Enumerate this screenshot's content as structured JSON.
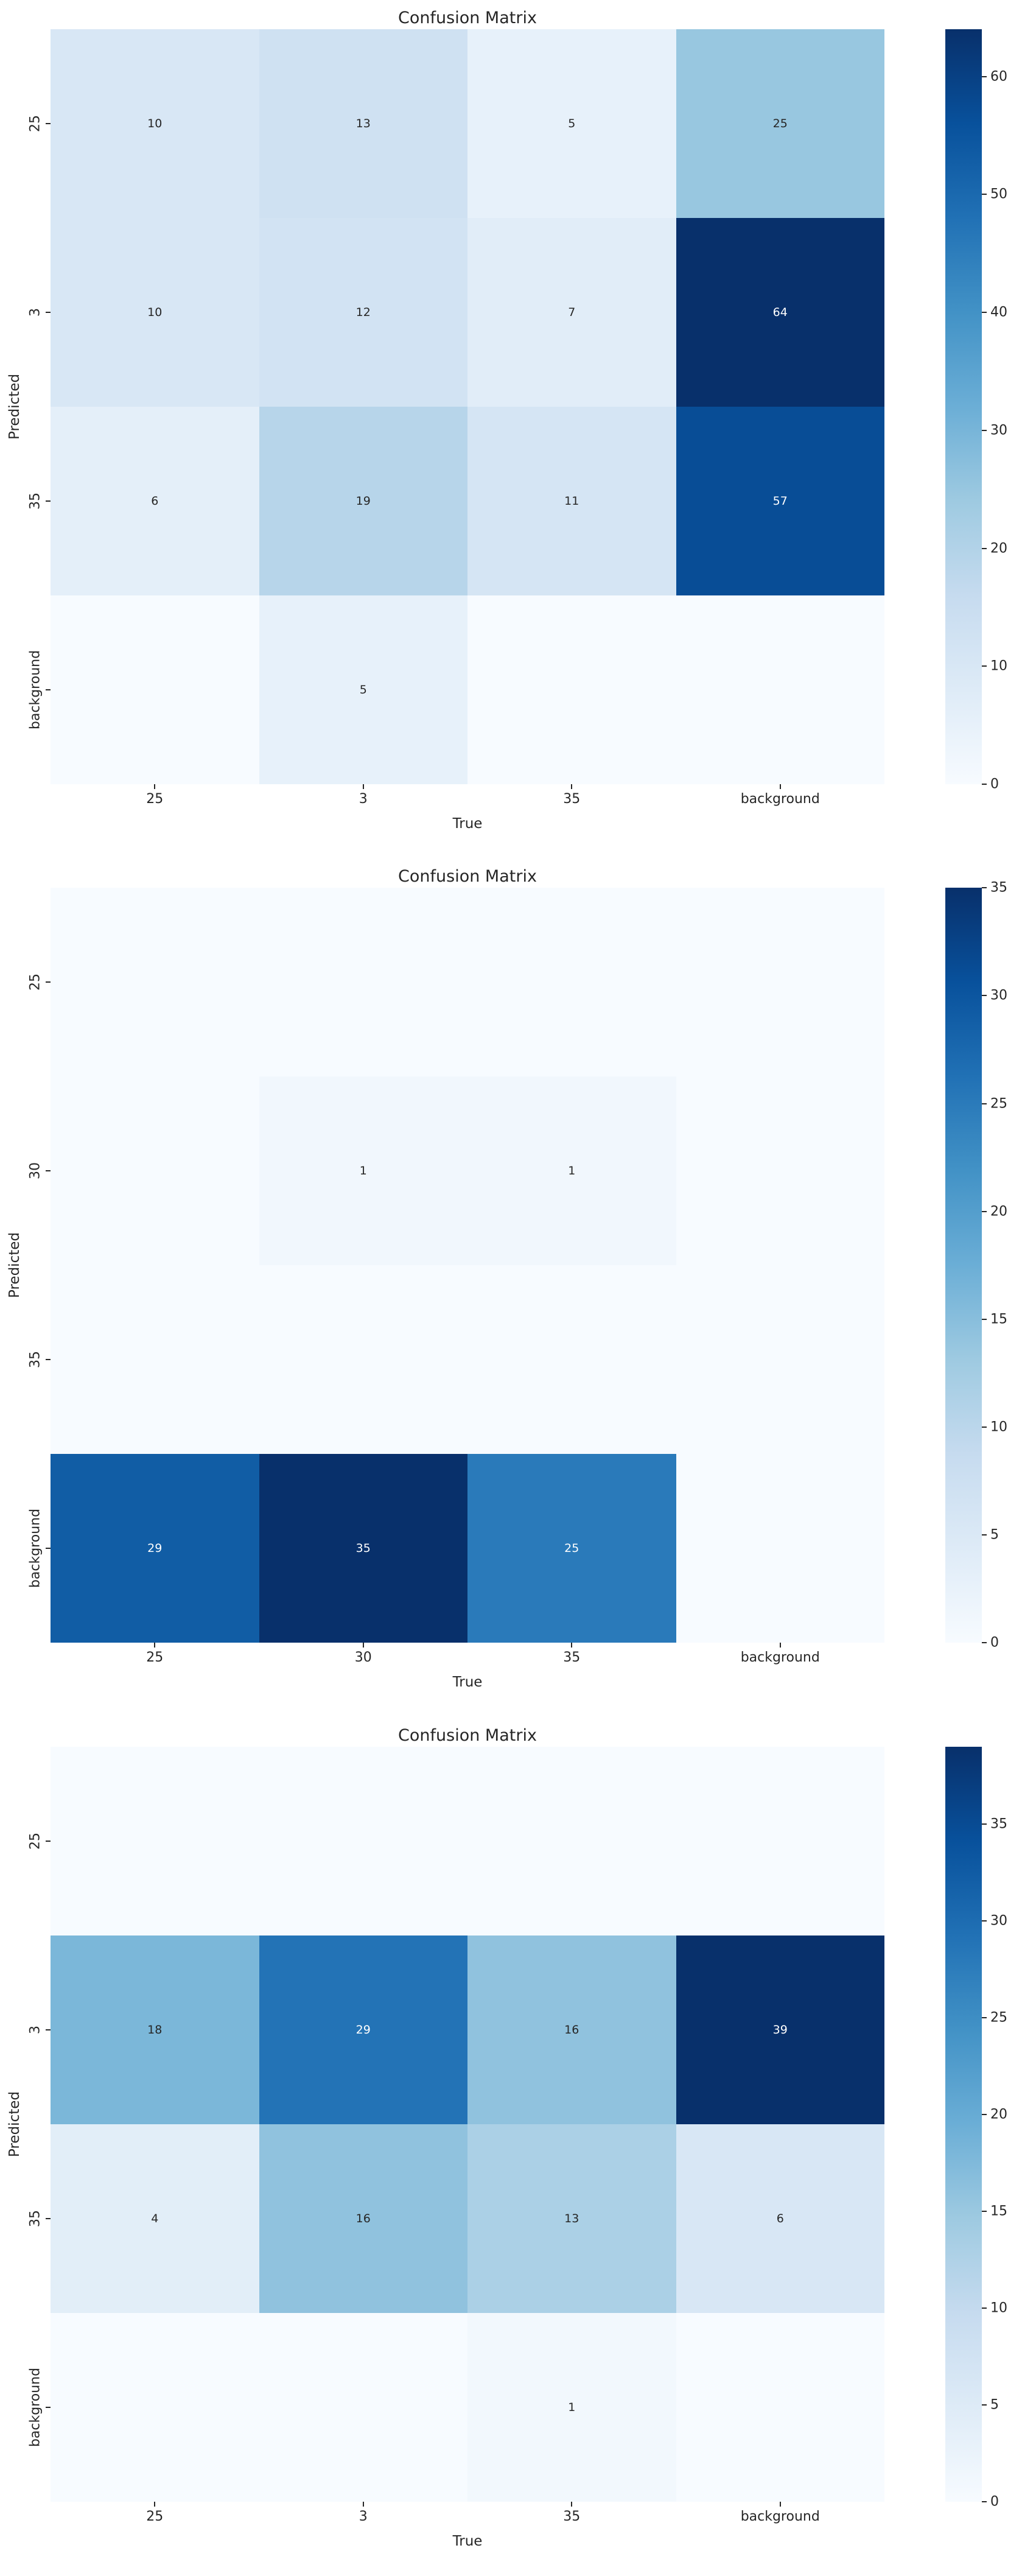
{
  "colors": {
    "figure_background": "#ffffff",
    "colormap_name": "Blues",
    "colormap_stops": [
      "#f7fbff",
      "#deebf7",
      "#c6dbef",
      "#9ecae1",
      "#6baed6",
      "#4292c6",
      "#2171b5",
      "#08519c",
      "#08306b"
    ],
    "annotation_light": "#ffffff",
    "annotation_dark": "#262626",
    "tick_text": "#262626"
  },
  "chart_data": [
    {
      "type": "heatmap",
      "title": "Confusion Matrix",
      "xlabel": "True",
      "ylabel": "Predicted",
      "x_categories": [
        "25",
        "3",
        "35",
        "background"
      ],
      "y_categories": [
        "25",
        "3",
        "35",
        "background"
      ],
      "values": [
        [
          10,
          13,
          5,
          25
        ],
        [
          10,
          12,
          7,
          64
        ],
        [
          6,
          19,
          11,
          57
        ],
        [
          null,
          5,
          null,
          null
        ]
      ],
      "vmin": 0,
      "vmax": 64,
      "colorbar_ticks": [
        0,
        10,
        20,
        30,
        40,
        50,
        60
      ],
      "colorbar_side": "right",
      "grid": false
    },
    {
      "type": "heatmap",
      "title": "Confusion Matrix",
      "xlabel": "True",
      "ylabel": "Predicted",
      "x_categories": [
        "25",
        "30",
        "35",
        "background"
      ],
      "y_categories": [
        "25",
        "30",
        "35",
        "background"
      ],
      "values": [
        [
          null,
          null,
          null,
          null
        ],
        [
          null,
          1,
          1,
          null
        ],
        [
          null,
          null,
          null,
          null
        ],
        [
          29,
          35,
          25,
          null
        ]
      ],
      "vmin": 0,
      "vmax": 35,
      "colorbar_ticks": [
        0,
        5,
        10,
        15,
        20,
        25,
        30,
        35
      ],
      "colorbar_side": "right",
      "grid": false
    },
    {
      "type": "heatmap",
      "title": "Confusion Matrix",
      "xlabel": "True",
      "ylabel": "Predicted",
      "x_categories": [
        "25",
        "3",
        "35",
        "background"
      ],
      "y_categories": [
        "25",
        "3",
        "35",
        "background"
      ],
      "values": [
        [
          null,
          null,
          null,
          null
        ],
        [
          18,
          29,
          16,
          39
        ],
        [
          4,
          16,
          13,
          6
        ],
        [
          null,
          null,
          1,
          null
        ]
      ],
      "vmin": 0,
      "vmax": 39,
      "colorbar_ticks": [
        0,
        5,
        10,
        15,
        20,
        25,
        30,
        35
      ],
      "colorbar_side": "right",
      "grid": false
    }
  ]
}
